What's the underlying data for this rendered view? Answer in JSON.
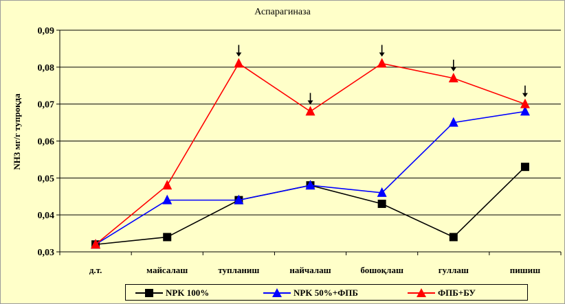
{
  "chart_data": {
    "type": "line",
    "title": "Аспарагиназа",
    "ylabel": "NH3 мг/г тупроқда",
    "xlabel": "",
    "categories": [
      "д.т.",
      "майсалаш",
      "тупланиш",
      "найчалаш",
      "бошоқлаш",
      "гуллаш",
      "пишиш"
    ],
    "ylim": [
      0.03,
      0.09
    ],
    "yticks": [
      "0,03",
      "0,04",
      "0,05",
      "0,06",
      "0,07",
      "0,08",
      "0,09"
    ],
    "ytick_values": [
      0.03,
      0.04,
      0.05,
      0.06,
      0.07,
      0.08,
      0.09
    ],
    "grid": true,
    "legend_position": "bottom",
    "series": [
      {
        "name": "NPK 100%",
        "color": "#000000",
        "marker": "square",
        "values": [
          0.032,
          0.034,
          0.044,
          0.048,
          0.043,
          0.034,
          0.053
        ]
      },
      {
        "name": "NPK 50%+ФПБ",
        "color": "#0000ff",
        "marker": "triangle",
        "values": [
          0.032,
          0.044,
          0.044,
          0.048,
          0.046,
          0.065,
          0.068
        ]
      },
      {
        "name": "ФПБ+БУ",
        "color": "#ff0000",
        "marker": "triangle",
        "values": [
          0.032,
          0.048,
          0.081,
          0.068,
          0.081,
          0.077,
          0.07
        ]
      }
    ],
    "annotations": {
      "description": "down arrows above highlighted points of ФПБ+БУ series",
      "series": "ФПБ+БУ",
      "category_indices": [
        2,
        3,
        4,
        5,
        6
      ],
      "symbol": "↓"
    }
  }
}
